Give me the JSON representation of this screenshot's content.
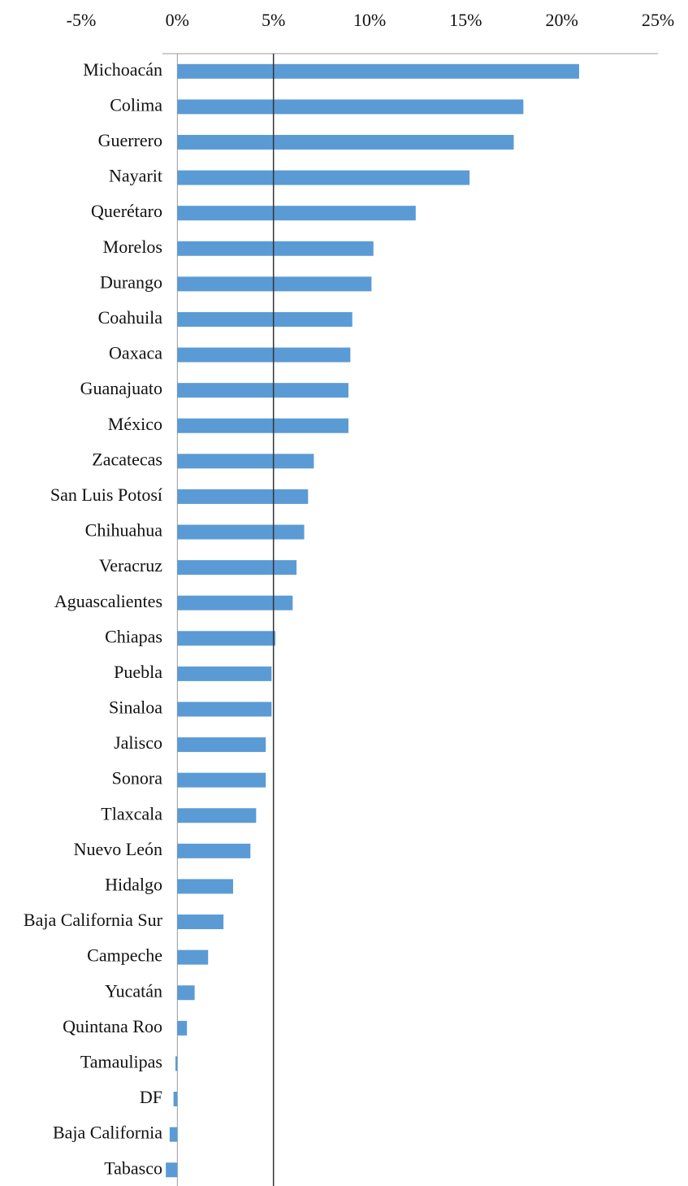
{
  "chart_data": {
    "type": "bar",
    "orientation": "horizontal",
    "categories": [
      "Michoacán",
      "Colima",
      "Guerrero",
      "Nayarit",
      "Querétaro",
      "Morelos",
      "Durango",
      "Coahuila",
      "Oaxaca",
      "Guanajuato",
      "México",
      "Zacatecas",
      "San Luis Potosí",
      "Chihuahua",
      "Veracruz",
      "Aguascalientes",
      "Chiapas",
      "Puebla",
      "Sinaloa",
      "Jalisco",
      "Sonora",
      "Tlaxcala",
      "Nuevo León",
      "Hidalgo",
      "Baja California Sur",
      "Campeche",
      "Yucatán",
      "Quintana Roo",
      "Tamaulipas",
      "DF",
      "Baja California",
      "Tabasco"
    ],
    "values": [
      20.9,
      18.0,
      17.5,
      15.2,
      12.4,
      10.2,
      10.1,
      9.1,
      9.0,
      8.9,
      8.9,
      7.1,
      6.8,
      6.6,
      6.2,
      6.0,
      5.1,
      4.9,
      4.9,
      4.6,
      4.6,
      4.1,
      3.8,
      2.9,
      2.4,
      1.6,
      0.9,
      0.5,
      -0.1,
      -0.2,
      -0.4,
      -0.6
    ],
    "color": "#5b9bd5",
    "xlim": [
      -5,
      25
    ],
    "xticks": [
      {
        "value": -5,
        "label": "-5%"
      },
      {
        "value": 0,
        "label": "0%"
      },
      {
        "value": 5,
        "label": "5%"
      },
      {
        "value": 10,
        "label": "10%"
      },
      {
        "value": 15,
        "label": "15%"
      },
      {
        "value": 20,
        "label": "20%"
      },
      {
        "value": 25,
        "label": "25%"
      }
    ],
    "reference_line": 5,
    "grid": false
  }
}
